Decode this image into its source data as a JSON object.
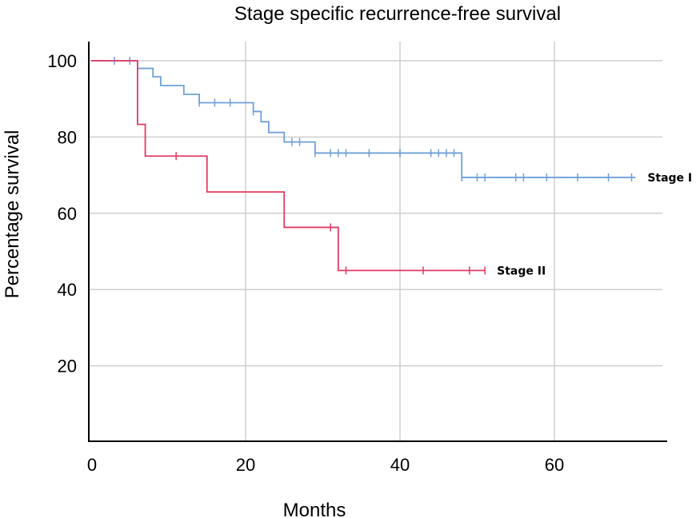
{
  "chart_data": {
    "type": "line",
    "step": true,
    "title": "Stage specific recurrence-free survival",
    "xlabel": "Months",
    "ylabel": "Percentage survival",
    "xlim": [
      0,
      75
    ],
    "ylim": [
      0,
      105
    ],
    "xticks": [
      0,
      20,
      40,
      60
    ],
    "yticks": [
      20,
      40,
      60,
      80,
      100
    ],
    "grid": true,
    "legend": "inline labels at line ends",
    "series": [
      {
        "name": "Stage I",
        "color": "#6fa0d8",
        "steps": [
          [
            0,
            100
          ],
          [
            6,
            98
          ],
          [
            8,
            95.8
          ],
          [
            9,
            93.5
          ],
          [
            12,
            91.2
          ],
          [
            14,
            89
          ],
          [
            21,
            86.7
          ],
          [
            22,
            84
          ],
          [
            23,
            81.2
          ],
          [
            25,
            78.7
          ],
          [
            29,
            75.8
          ],
          [
            48,
            69.4
          ],
          [
            70.5,
            69.4
          ]
        ],
        "censored": [
          [
            3,
            100
          ],
          [
            5,
            100
          ],
          [
            14,
            89
          ],
          [
            16,
            89
          ],
          [
            18,
            89
          ],
          [
            21,
            86.7
          ],
          [
            26,
            78.7
          ],
          [
            27,
            78.7
          ],
          [
            29,
            75.8
          ],
          [
            31,
            75.8
          ],
          [
            32,
            75.8
          ],
          [
            33,
            75.8
          ],
          [
            36,
            75.8
          ],
          [
            40,
            75.8
          ],
          [
            44,
            75.8
          ],
          [
            45,
            75.8
          ],
          [
            46,
            75.8
          ],
          [
            47,
            75.8
          ],
          [
            48,
            69.4
          ],
          [
            50,
            69.4
          ],
          [
            51,
            69.4
          ],
          [
            55,
            69.4
          ],
          [
            56,
            69.4
          ],
          [
            59,
            69.4
          ],
          [
            63,
            69.4
          ],
          [
            67,
            69.4
          ],
          [
            70,
            69.4
          ]
        ]
      },
      {
        "name": "Stage II",
        "color": "#e23a63",
        "steps": [
          [
            0,
            100
          ],
          [
            6,
            83.3
          ],
          [
            7,
            75
          ],
          [
            15,
            65.6
          ],
          [
            25,
            56.3
          ],
          [
            32,
            45
          ],
          [
            51,
            45
          ]
        ],
        "censored": [
          [
            11,
            75
          ],
          [
            31,
            56.3
          ],
          [
            33,
            45
          ],
          [
            43,
            45
          ],
          [
            49,
            45
          ],
          [
            51,
            45
          ]
        ]
      }
    ]
  }
}
